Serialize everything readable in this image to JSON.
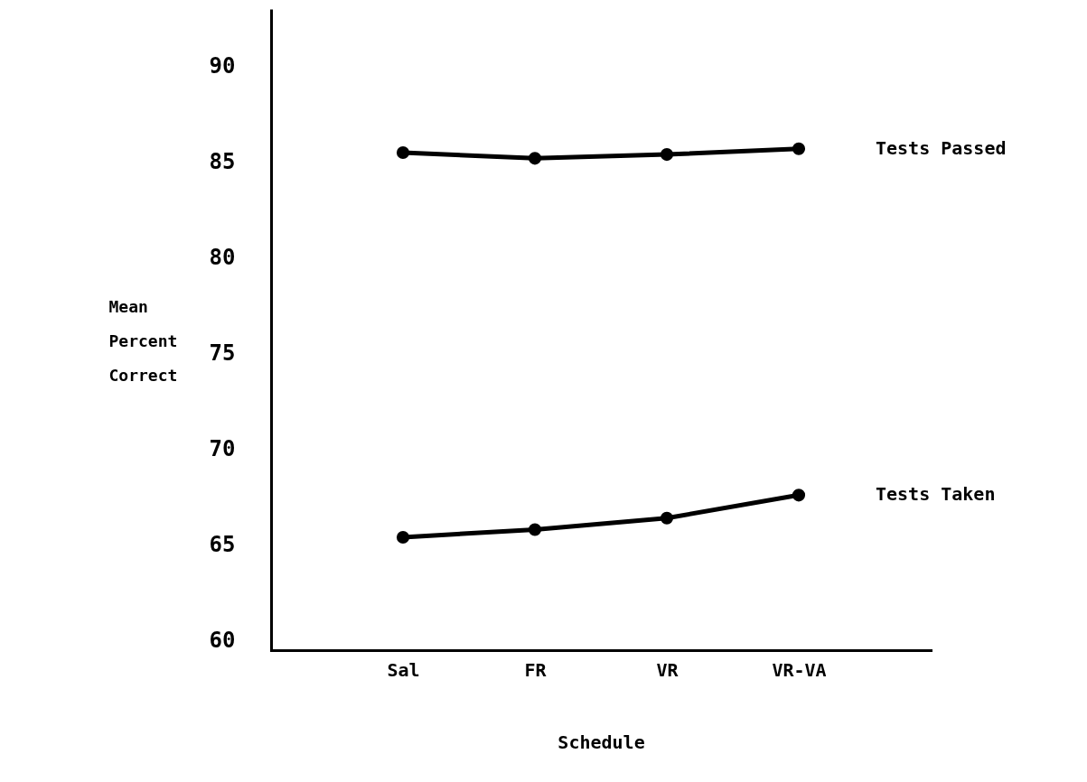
{
  "chart_data": {
    "type": "line",
    "xlabel": "Schedule",
    "ylabel": "Mean Percent Correct",
    "categories": [
      "Sal",
      "FR",
      "VR",
      "VR-VA"
    ],
    "ylim": [
      59.5,
      93
    ],
    "yticks": [
      60,
      65,
      70,
      75,
      80,
      85,
      90
    ],
    "grid": false,
    "marker": "circle",
    "line_style": "solid",
    "series": [
      {
        "name": "Tests Passed",
        "color": "#000000",
        "values": [
          85.5,
          85.2,
          85.4,
          85.7
        ]
      },
      {
        "name": "Tests Taken",
        "color": "#000000",
        "values": [
          65.4,
          65.8,
          66.4,
          67.6
        ]
      }
    ]
  }
}
